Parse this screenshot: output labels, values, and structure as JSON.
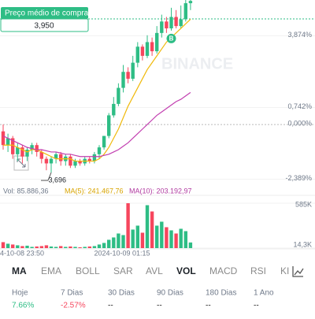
{
  "buy_box": {
    "label": "Preço médio de compra",
    "value": "3,950"
  },
  "chart_data": {
    "type": "candlestick",
    "watermark": "BINANCE",
    "ylim": [
      -2.82,
      5.44
    ],
    "yticks": [
      {
        "value": 3.874,
        "label": "3,874%"
      },
      {
        "value": 0.742,
        "label": "0,742%"
      },
      {
        "value": 0,
        "label": "0,000%"
      },
      {
        "value": -2.389,
        "label": "-2,389%"
      }
    ],
    "up_color": "#2ebd85",
    "down_color": "#f6465d",
    "candles": [
      [
        -0.3,
        -0.9,
        0,
        -1.1
      ],
      [
        -0.9,
        -0.6,
        -0.4,
        -1.2
      ],
      [
        -0.6,
        -1.3,
        -0.5,
        -1.5
      ],
      [
        -1.3,
        -1.0,
        -0.8,
        -1.6
      ],
      [
        -1.0,
        -1.4,
        -0.9,
        -1.7
      ],
      [
        -1.4,
        -1.1,
        -1.0,
        -1.6
      ],
      [
        -1.1,
        -0.9,
        -0.8,
        -1.3
      ],
      [
        -0.9,
        -1.2,
        -0.8,
        -1.4
      ],
      [
        -1.2,
        -1.5,
        -1.1,
        -1.7
      ],
      [
        -1.5,
        -1.7,
        -1.4,
        -2.0
      ],
      [
        -1.7,
        -1.5,
        -1.4,
        -2.1
      ],
      [
        -1.5,
        -1.3,
        -1.2,
        -1.7
      ],
      [
        -1.3,
        -1.6,
        -1.2,
        -1.8
      ],
      [
        -1.6,
        -1.4,
        -1.3,
        -1.8
      ],
      [
        -1.4,
        -1.8,
        -1.3,
        -1.9
      ],
      [
        -1.8,
        -1.6,
        -1.5,
        -1.9
      ],
      [
        -1.6,
        -1.7,
        -1.5,
        -1.8
      ],
      [
        -1.7,
        -1.5,
        -1.4,
        -1.8
      ],
      [
        -1.5,
        -1.6,
        -1.4,
        -1.7
      ],
      [
        -1.6,
        -1.3,
        -1.2,
        -1.7
      ],
      [
        -1.3,
        -1.0,
        -0.9,
        -1.5
      ],
      [
        -1.0,
        -0.5,
        -0.5,
        -1.1
      ],
      [
        -0.5,
        0.4,
        0.5,
        -0.6
      ],
      [
        0.4,
        0.9,
        1.2,
        0.3
      ],
      [
        0.9,
        1.6,
        1.8,
        0.8
      ],
      [
        1.6,
        2.3,
        2.6,
        1.4
      ],
      [
        2.3,
        2.0,
        2.5,
        1.8
      ],
      [
        2.0,
        2.7,
        3.0,
        1.9
      ],
      [
        2.7,
        3.4,
        3.6,
        2.5
      ],
      [
        3.4,
        3.0,
        3.5,
        2.8
      ],
      [
        3.0,
        3.6,
        3.9,
        2.9
      ],
      [
        3.6,
        3.2,
        3.8,
        3.0
      ],
      [
        3.2,
        4.0,
        4.3,
        3.1
      ],
      [
        4.0,
        4.5,
        4.8,
        3.8
      ],
      [
        4.5,
        4.2,
        4.7,
        4.0
      ],
      [
        4.2,
        4.7,
        5.1,
        4.1
      ],
      [
        4.7,
        4.3,
        5.0,
        4.2
      ],
      [
        4.3,
        4.6,
        5.2,
        4.2
      ],
      [
        4.6,
        5.3,
        5.5,
        4.5
      ],
      [
        5.3,
        5.4,
        5.5,
        5.0
      ]
    ],
    "ma_lines": [
      {
        "color": "#f0b90b",
        "values": [
          -0.9,
          -0.9,
          -0.9,
          -1.0,
          -1.1,
          -1.2,
          -1.1,
          -1.1,
          -1.2,
          -1.3,
          -1.4,
          -1.5,
          -1.5,
          -1.5,
          -1.5,
          -1.6,
          -1.6,
          -1.6,
          -1.6,
          -1.6,
          -1.5,
          -1.3,
          -1.0,
          -0.6,
          -0.2,
          0.3,
          0.8,
          1.2,
          1.6,
          2.0,
          2.4,
          2.7,
          3.0,
          3.3,
          3.6,
          3.8,
          4.0,
          4.2,
          4.4,
          4.6
        ]
      },
      {
        "color": "#c23fb0",
        "values": [
          -0.5,
          -0.6,
          -0.7,
          -0.8,
          -0.9,
          -1.0,
          -1.05,
          -1.1,
          -1.1,
          -1.15,
          -1.2,
          -1.2,
          -1.25,
          -1.3,
          -1.3,
          -1.35,
          -1.4,
          -1.4,
          -1.4,
          -1.4,
          -1.4,
          -1.35,
          -1.3,
          -1.2,
          -1.1,
          -0.95,
          -0.8,
          -0.6,
          -0.4,
          -0.2,
          0,
          0.2,
          0.4,
          0.55,
          0.7,
          0.85,
          1.0,
          1.1,
          1.25,
          1.4
        ]
      }
    ],
    "low_label": "3,696",
    "marker": "B"
  },
  "volume": {
    "title": "Vol: 85.886,36",
    "ma5": "MA(5): 241.467,76",
    "ma10": "MA(10): 203.192,97",
    "ylim": [
      14300,
      585000
    ],
    "yticks": [
      {
        "value": 585000,
        "label": "585K"
      },
      {
        "value": 14300,
        "label": "14,3K"
      }
    ],
    "values": [
      90000,
      70000,
      60000,
      50000,
      40000,
      45000,
      30000,
      35000,
      40000,
      50000,
      35000,
      30000,
      40000,
      30000,
      35000,
      30000,
      25000,
      30000,
      35000,
      40000,
      60000,
      80000,
      120000,
      150000,
      200000,
      180000,
      585000,
      250000,
      300000,
      210000,
      560000,
      480000,
      300000,
      350000,
      280000,
      240000,
      200000,
      260000,
      230000,
      86000
    ]
  },
  "dates": [
    "4-10-08 23:50",
    "2024-10-09 01:15"
  ],
  "tabs": [
    "MA",
    "EMA",
    "BOLL",
    "SAR",
    "AVL",
    "VOL",
    "MACD",
    "RSI",
    "KI"
  ],
  "periods": [
    {
      "label": "Hoje",
      "value": "7.66%",
      "color": "#2ebd85"
    },
    {
      "label": "7 Dias",
      "value": "-2.57%",
      "color": "#f6465d"
    },
    {
      "label": "30 Dias",
      "value": "--",
      "color": "#222"
    },
    {
      "label": "90 Dias",
      "value": "--",
      "color": "#222"
    },
    {
      "label": "180 Dias",
      "value": "--",
      "color": "#222"
    },
    {
      "label": "1 Ano",
      "value": "--",
      "color": "#222"
    }
  ]
}
